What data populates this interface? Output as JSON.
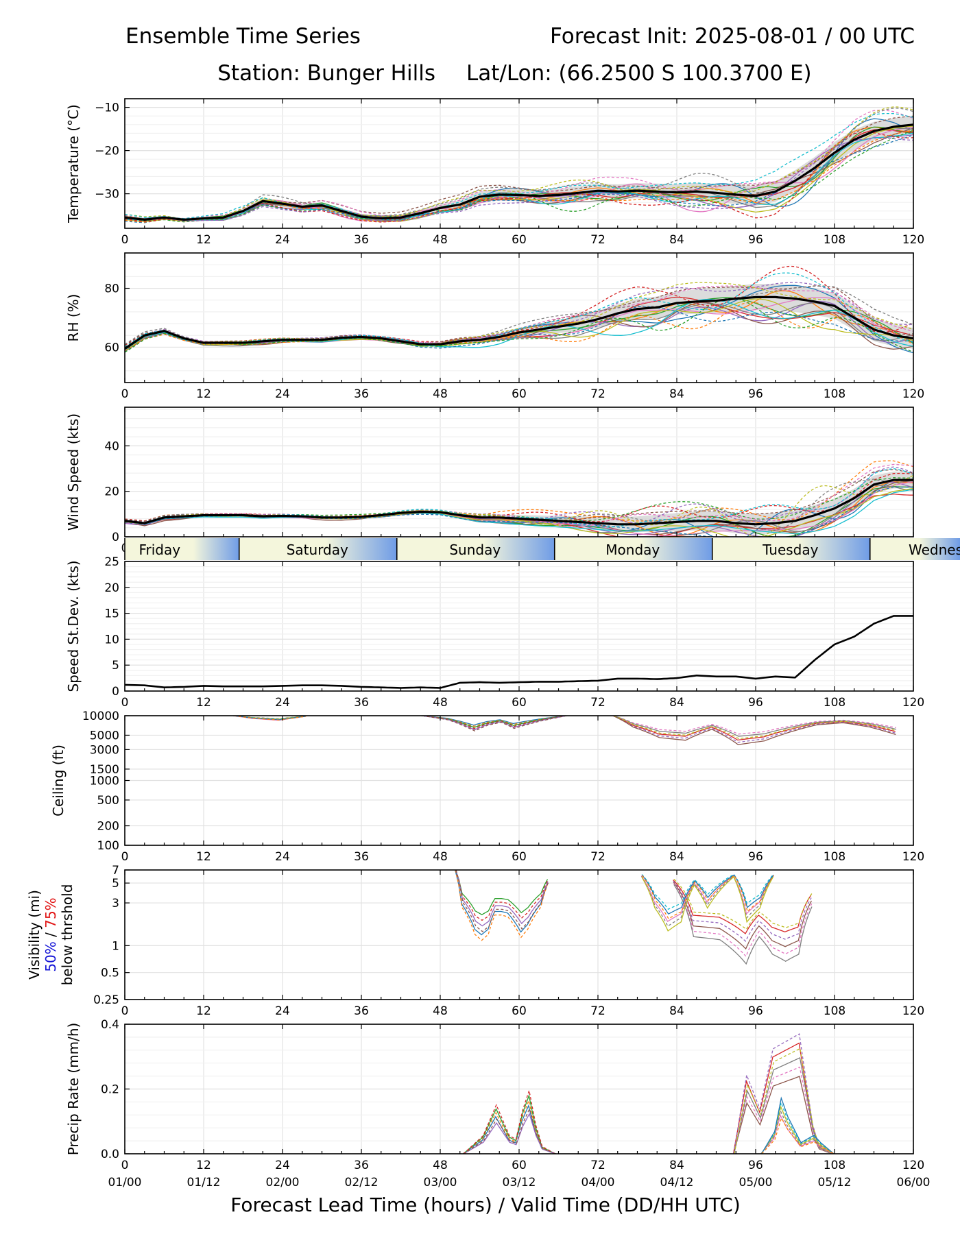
{
  "header": {
    "title_left": "Ensemble Time Series",
    "title_right": "Forecast Init: 2025-08-01 / 00 UTC",
    "station": "Station: Bunger Hills",
    "latlon": "Lat/Lon: (66.2500 S 100.3700 E)"
  },
  "xaxis": {
    "range": [
      0,
      120
    ],
    "ticks": [
      "0",
      "12",
      "24",
      "36",
      "48",
      "60",
      "72",
      "84",
      "96",
      "108",
      "120"
    ],
    "valid_times": [
      "01/00",
      "01/12",
      "02/00",
      "02/12",
      "03/00",
      "03/12",
      "04/00",
      "04/12",
      "05/00",
      "05/12",
      "06/00"
    ],
    "label": "Forecast Lead Time (hours) / Valid Time (DD/HH UTC)"
  },
  "day_bar": {
    "labels": [
      "Friday",
      "Saturday",
      "Sunday",
      "Monday",
      "Tuesday",
      "Wednes"
    ],
    "label_hours": [
      5.3,
      29.3,
      53.3,
      77.3,
      101.3,
      125.3
    ],
    "boundaries": [
      17.4,
      41.4,
      65.4,
      89.4,
      113.4
    ],
    "colors": {
      "light": "#f4f6dc",
      "dark": "#6f9ce6"
    }
  },
  "member_colors": [
    "#1f77b4",
    "#ff7f0e",
    "#2ca02c",
    "#d62728",
    "#9467bd",
    "#8c564b",
    "#e377c2",
    "#7f7f7f",
    "#bcbd22",
    "#17becf"
  ],
  "chart_data": [
    {
      "type": "line",
      "title": "Temperature",
      "ylabel": "Temperature (°C)",
      "ylim": [
        -38,
        -8
      ],
      "yticks": [
        "−10",
        "−20",
        "−30"
      ],
      "ytick_values": [
        -10,
        -20,
        -30
      ],
      "x": [
        0,
        3,
        6,
        9,
        12,
        15,
        18,
        21,
        24,
        27,
        30,
        33,
        36,
        39,
        42,
        45,
        48,
        51,
        54,
        57,
        60,
        63,
        66,
        69,
        72,
        75,
        78,
        81,
        84,
        87,
        90,
        93,
        96,
        99,
        102,
        105,
        108,
        111,
        114,
        117,
        120
      ],
      "mean": [
        -35.5,
        -36,
        -35.5,
        -36,
        -35.7,
        -35.5,
        -34,
        -31.7,
        -32.3,
        -33,
        -32.7,
        -34,
        -35.3,
        -35.7,
        -35.5,
        -34.5,
        -33.3,
        -32.5,
        -30.7,
        -30.2,
        -30.3,
        -30.5,
        -30.3,
        -29.8,
        -29.3,
        -29.5,
        -29.3,
        -29.5,
        -29.7,
        -29.5,
        -29.8,
        -30.2,
        -30.5,
        -29.5,
        -27,
        -24,
        -20.5,
        -17.5,
        -15.5,
        -14.5,
        -14
      ],
      "spread": [
        0.8,
        0.8,
        0.8,
        0.8,
        0.8,
        0.9,
        1.2,
        1.5,
        1.6,
        1.6,
        1.5,
        1.4,
        1.2,
        1.2,
        1.3,
        1.5,
        1.8,
        2.2,
        2.6,
        2.9,
        3.1,
        3.2,
        3.3,
        3.4,
        3.5,
        3.7,
        3.9,
        4.1,
        4.3,
        4.5,
        4.7,
        4.9,
        5.1,
        5.3,
        5.5,
        5.6,
        5.5,
        5.2,
        4.8,
        4.5,
        4.3
      ]
    },
    {
      "type": "line",
      "title": "RH",
      "ylabel": "RH (%)",
      "ylim": [
        48,
        92
      ],
      "yticks": [
        "60",
        "80"
      ],
      "ytick_values": [
        60,
        80
      ],
      "x": [
        0,
        3,
        6,
        9,
        12,
        15,
        18,
        21,
        24,
        27,
        30,
        33,
        36,
        39,
        42,
        45,
        48,
        51,
        54,
        57,
        60,
        63,
        66,
        69,
        72,
        75,
        78,
        81,
        84,
        87,
        90,
        93,
        96,
        99,
        102,
        105,
        108,
        111,
        114,
        117,
        120
      ],
      "mean": [
        59.5,
        64,
        65.5,
        63,
        61.5,
        61.5,
        61.5,
        62,
        62.5,
        62.5,
        62.5,
        63.2,
        63.5,
        63,
        62,
        61,
        61,
        62,
        62.5,
        63.5,
        65,
        66,
        67,
        68,
        69.5,
        71.5,
        73,
        73.5,
        75,
        75.5,
        75.8,
        76.5,
        77,
        77,
        76.5,
        75.5,
        74,
        70,
        66,
        64,
        63
      ],
      "spread": [
        1.4,
        1.3,
        1.2,
        1,
        0.9,
        0.9,
        0.9,
        1,
        1,
        1,
        1,
        1,
        1.1,
        1.1,
        1.2,
        1.3,
        1.4,
        1.8,
        2.3,
        2.9,
        3.5,
        4.2,
        4.9,
        5.6,
        6.3,
        7,
        7.7,
        8.3,
        8.8,
        9.2,
        9.5,
        9.8,
        10,
        10.1,
        10.1,
        10,
        9.7,
        9.3,
        8.8,
        8.3,
        7.9
      ]
    },
    {
      "type": "line",
      "title": "Wind Speed",
      "ylabel": "Wind Speed (kts)",
      "ylim": [
        0,
        57
      ],
      "yticks": [
        "0",
        "20",
        "40"
      ],
      "ytick_values": [
        0,
        20,
        40
      ],
      "x": [
        0,
        3,
        6,
        9,
        12,
        15,
        18,
        21,
        24,
        27,
        30,
        33,
        36,
        39,
        42,
        45,
        48,
        51,
        54,
        57,
        60,
        63,
        66,
        69,
        72,
        75,
        78,
        81,
        84,
        87,
        90,
        93,
        96,
        99,
        102,
        105,
        108,
        111,
        114,
        117,
        120
      ],
      "mean": [
        7,
        6,
        8.5,
        9,
        9.5,
        9.5,
        9.5,
        9,
        9.2,
        9,
        8.5,
        8.5,
        8.8,
        9.5,
        10.5,
        11,
        10.8,
        9.5,
        8.5,
        8.5,
        8,
        7.5,
        7,
        6.5,
        6,
        5.5,
        5.5,
        6,
        6.5,
        7,
        7,
        6,
        5.5,
        6,
        7,
        9.5,
        12.5,
        17,
        23,
        25,
        25
      ],
      "spread": [
        1.4,
        1.3,
        1.2,
        1,
        0.9,
        0.9,
        0.9,
        1,
        1,
        1,
        1,
        1,
        1.1,
        1.1,
        1.2,
        1.3,
        1.4,
        1.8,
        2.3,
        2.9,
        3.5,
        4.2,
        4.9,
        5.6,
        6.3,
        7,
        7.7,
        8.3,
        8.8,
        9.2,
        9.5,
        9.8,
        10,
        10.1,
        10.1,
        10,
        9.7,
        9.3,
        8.8,
        8.3,
        7.9
      ]
    },
    {
      "type": "line",
      "title": "Speed St.Dev.",
      "ylabel": "Speed St.Dev. (kts)",
      "ylim": [
        0,
        25
      ],
      "yticks": [
        "0",
        "5",
        "10",
        "15",
        "20",
        "25"
      ],
      "ytick_values": [
        0,
        5,
        10,
        15,
        20,
        25
      ],
      "x": [
        0,
        3,
        6,
        9,
        12,
        15,
        18,
        21,
        24,
        27,
        30,
        33,
        36,
        39,
        42,
        45,
        48,
        51,
        54,
        57,
        60,
        63,
        66,
        69,
        72,
        75,
        78,
        81,
        84,
        87,
        90,
        93,
        96,
        99,
        102,
        105,
        108,
        111,
        114,
        117,
        120
      ],
      "mean": [
        1.2,
        1.1,
        0.7,
        0.8,
        1,
        0.9,
        0.9,
        0.9,
        1,
        1.1,
        1.1,
        1,
        0.8,
        0.7,
        0.6,
        0.7,
        0.6,
        1.6,
        1.7,
        1.6,
        1.7,
        1.8,
        1.8,
        1.9,
        2,
        2.4,
        2.4,
        2.3,
        2.5,
        3,
        2.8,
        2.8,
        2.4,
        2.8,
        2.6,
        6,
        9,
        10.5,
        13,
        14.5,
        14.5
      ]
    },
    {
      "type": "line",
      "title": "Ceiling",
      "ylabel": "Ceiling (ft)",
      "yscale": "log",
      "ylim": [
        100,
        10000
      ],
      "yticks": [
        "100",
        "200",
        "500",
        "1000",
        "1500",
        "3000",
        "5000",
        "10000"
      ],
      "ytick_values": [
        100,
        200,
        500,
        1000,
        1500,
        3000,
        5000,
        10000
      ],
      "series": [
        {
          "x": [
            48,
            52,
            56,
            58,
            60,
            62,
            66,
            70
          ],
          "y": [
            10000,
            8800,
            6300,
            7500,
            8200,
            6800,
            8500,
            10000
          ]
        },
        {
          "x": [
            77,
            80,
            84,
            88,
            92,
            96,
            100,
            104,
            108,
            112,
            116,
            120
          ],
          "y": [
            10000,
            7000,
            5000,
            4600,
            6500,
            4000,
            4500,
            6000,
            7500,
            8000,
            7000,
            5500
          ]
        },
        {
          "x": [
            19,
            22,
            26,
            30
          ],
          "y": [
            10000,
            9200,
            8700,
            9800
          ]
        }
      ]
    },
    {
      "type": "line",
      "title": "Visibility",
      "ylabel": "Visibility (mi)",
      "ylabel_50": "50%",
      "ylabel_sep": " / ",
      "ylabel_75": "75%",
      "ylabel_2": "below thrshold",
      "yscale": "log",
      "ylim": [
        0.25,
        7
      ],
      "yticks": [
        "0.25",
        "0.5",
        "1",
        "3",
        "5",
        "7"
      ],
      "ytick_values": [
        0.25,
        0.5,
        1,
        3,
        5,
        7
      ],
      "series": [
        {
          "x": [
            52,
            53,
            55,
            56,
            57,
            58,
            59,
            60,
            62,
            63,
            65,
            66
          ],
          "y": [
            7,
            3,
            1.6,
            1.4,
            1.6,
            2.5,
            2.5,
            2.4,
            1.5,
            1.8,
            3,
            5
          ]
        },
        {
          "x": [
            85,
            88,
            92,
            94,
            96,
            98,
            100,
            102,
            104,
            106
          ],
          "y": [
            5,
            1.5,
            1.4,
            1.1,
            0.8,
            1.5,
            1,
            0.85,
            1,
            3
          ]
        },
        {
          "x": [
            80,
            82,
            84,
            86,
            88,
            90,
            92,
            94,
            96,
            98,
            100
          ],
          "y": [
            6,
            3,
            1.8,
            2.2,
            5,
            3,
            4.5,
            6,
            2.2,
            3,
            6
          ]
        }
      ]
    },
    {
      "type": "line",
      "title": "Precip Rate",
      "ylabel": "Precip Rate (mm/h)",
      "ylim": [
        0,
        0.4
      ],
      "yticks": [
        "0.0",
        "0.2",
        "0.4"
      ],
      "ytick_values": [
        0,
        0.2,
        0.4
      ],
      "series": [
        {
          "x": [
            52,
            55,
            57,
            59,
            60,
            61,
            62,
            63,
            64,
            66
          ],
          "y": [
            0,
            0.05,
            0.135,
            0.05,
            0.04,
            0.12,
            0.175,
            0.08,
            0.02,
            0
          ]
        },
        {
          "x": [
            93,
            95,
            97,
            99,
            101,
            103,
            104,
            105,
            106,
            108
          ],
          "y": [
            0,
            0.21,
            0.12,
            0.28,
            0.3,
            0.32,
            0.2,
            0.08,
            0.02,
            0
          ]
        },
        {
          "x": [
            97,
            99,
            100,
            101,
            103,
            105,
            106,
            108
          ],
          "y": [
            0,
            0.06,
            0.15,
            0.1,
            0.03,
            0.05,
            0.03,
            0
          ]
        }
      ]
    }
  ]
}
